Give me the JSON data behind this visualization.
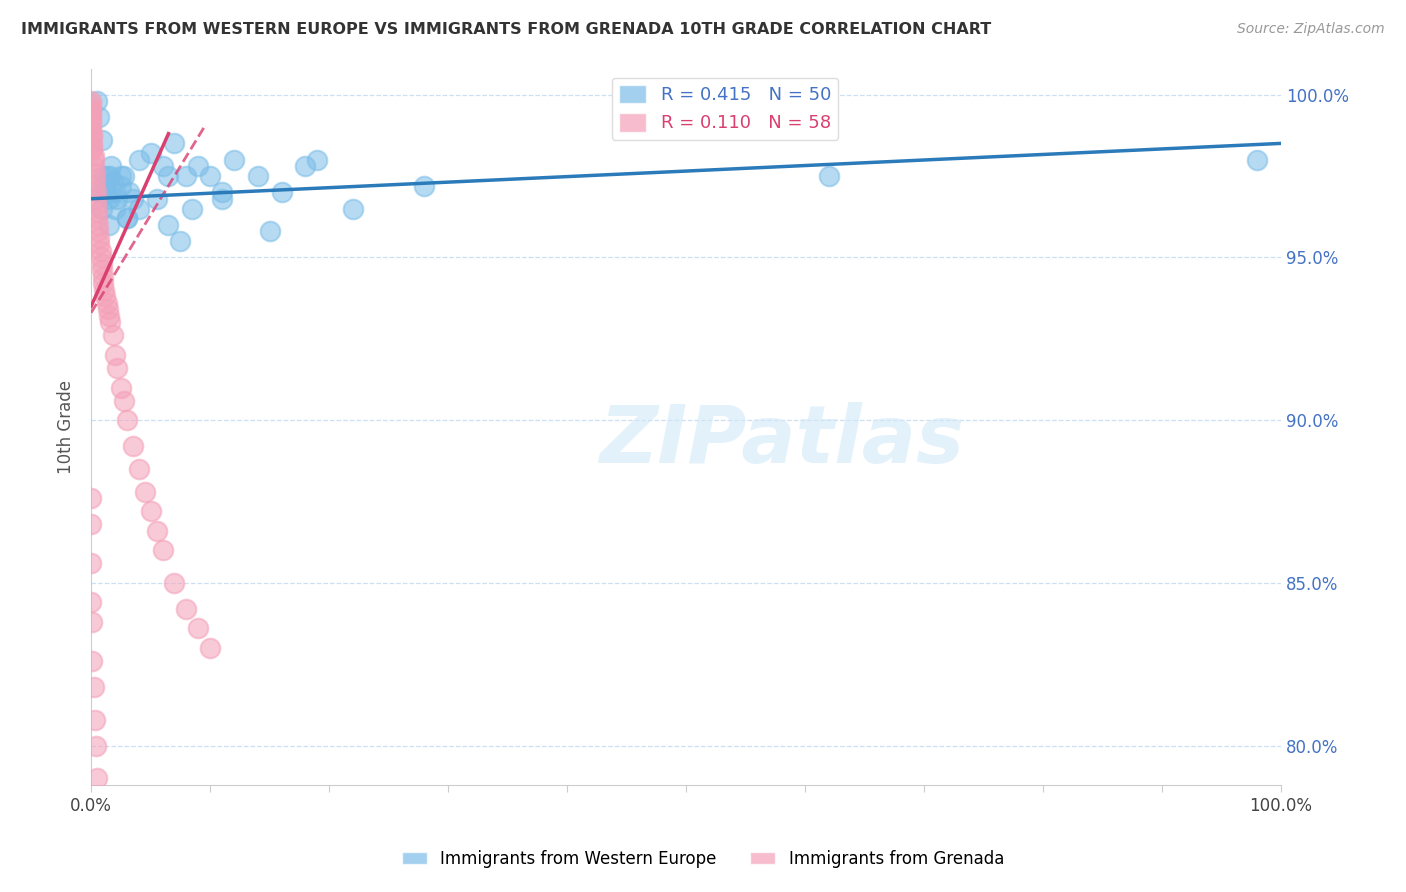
{
  "title": "IMMIGRANTS FROM WESTERN EUROPE VS IMMIGRANTS FROM GRENADA 10TH GRADE CORRELATION CHART",
  "source": "Source: ZipAtlas.com",
  "ylabel": "10th Grade",
  "xlim": [
    0,
    1.0
  ],
  "ylim": [
    0.788,
    1.008
  ],
  "yticks": [
    0.8,
    0.85,
    0.9,
    0.95,
    1.0
  ],
  "xticks": [
    0.0,
    0.1,
    0.2,
    0.3,
    0.4,
    0.5,
    0.6,
    0.7,
    0.8,
    0.9,
    1.0
  ],
  "blue_R": 0.415,
  "blue_N": 50,
  "pink_R": 0.11,
  "pink_N": 58,
  "blue_color": "#7bbde8",
  "pink_color": "#f4a0b8",
  "blue_line_color": "#2b7bba",
  "pink_line_color": "#d94070",
  "blue_x": [
    0.005,
    0.007,
    0.009,
    0.01,
    0.012,
    0.013,
    0.015,
    0.016,
    0.017,
    0.018,
    0.02,
    0.022,
    0.025,
    0.028,
    0.03,
    0.032,
    0.035,
    0.04,
    0.05,
    0.06,
    0.065,
    0.07,
    0.08,
    0.09,
    0.1,
    0.11,
    0.12,
    0.14,
    0.16,
    0.18,
    0.008,
    0.009,
    0.011,
    0.013,
    0.015,
    0.02,
    0.025,
    0.03,
    0.04,
    0.055,
    0.065,
    0.075,
    0.085,
    0.11,
    0.15,
    0.19,
    0.22,
    0.28,
    0.62,
    0.98
  ],
  "blue_y": [
    0.998,
    0.993,
    0.986,
    0.975,
    0.972,
    0.97,
    0.968,
    0.975,
    0.978,
    0.973,
    0.965,
    0.968,
    0.972,
    0.975,
    0.962,
    0.97,
    0.968,
    0.98,
    0.982,
    0.978,
    0.975,
    0.985,
    0.975,
    0.978,
    0.975,
    0.968,
    0.98,
    0.975,
    0.97,
    0.978,
    0.97,
    0.965,
    0.972,
    0.975,
    0.96,
    0.97,
    0.975,
    0.962,
    0.965,
    0.968,
    0.96,
    0.955,
    0.965,
    0.97,
    0.958,
    0.98,
    0.965,
    0.972,
    0.975,
    0.98
  ],
  "pink_x": [
    0.0,
    0.0,
    0.0,
    0.0,
    0.0,
    0.0,
    0.0,
    0.0,
    0.0,
    0.0,
    0.001,
    0.001,
    0.001,
    0.001,
    0.001,
    0.002,
    0.002,
    0.002,
    0.003,
    0.003,
    0.003,
    0.004,
    0.004,
    0.004,
    0.005,
    0.005,
    0.006,
    0.006,
    0.007,
    0.007,
    0.008,
    0.008,
    0.009,
    0.009,
    0.01,
    0.01,
    0.011,
    0.012,
    0.013,
    0.014,
    0.015,
    0.016,
    0.018,
    0.02,
    0.022,
    0.025,
    0.028,
    0.03,
    0.035,
    0.04,
    0.045,
    0.05,
    0.055,
    0.06,
    0.07,
    0.08,
    0.09,
    0.1
  ],
  "pink_y": [
    0.998,
    0.997,
    0.996,
    0.995,
    0.994,
    0.993,
    0.992,
    0.991,
    0.99,
    0.989,
    0.988,
    0.987,
    0.985,
    0.984,
    0.983,
    0.981,
    0.98,
    0.978,
    0.976,
    0.974,
    0.972,
    0.97,
    0.968,
    0.966,
    0.964,
    0.962,
    0.96,
    0.958,
    0.956,
    0.954,
    0.952,
    0.95,
    0.948,
    0.946,
    0.944,
    0.942,
    0.94,
    0.938,
    0.936,
    0.934,
    0.932,
    0.93,
    0.926,
    0.92,
    0.916,
    0.91,
    0.906,
    0.9,
    0.892,
    0.885,
    0.878,
    0.872,
    0.866,
    0.86,
    0.85,
    0.842,
    0.836,
    0.83
  ],
  "pink_extra_x": [
    0.0,
    0.0,
    0.0,
    0.0,
    0.001,
    0.001,
    0.002,
    0.003,
    0.004,
    0.005
  ],
  "pink_extra_y": [
    0.876,
    0.868,
    0.856,
    0.844,
    0.838,
    0.826,
    0.818,
    0.808,
    0.8,
    0.79
  ],
  "watermark": "ZIPatlas",
  "legend_blue_label": "R = 0.415   N = 50",
  "legend_pink_label": "R = 0.110   N = 58"
}
